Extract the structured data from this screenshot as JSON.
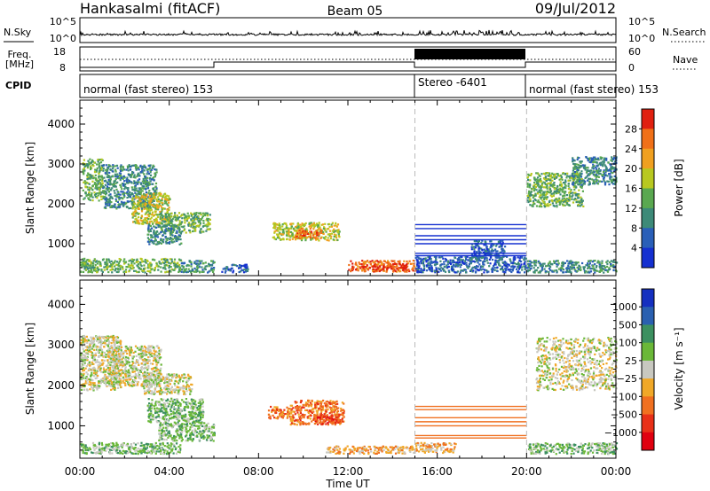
{
  "header": {
    "station": "Hankasalmi (fitACF)",
    "beam": "Beam 05",
    "date": "09/Jul/2012"
  },
  "strips": {
    "nsky": {
      "label": "N.Sky",
      "left_ticks": [
        "10^5",
        "10^0"
      ],
      "right_ticks": [
        "10^5",
        "10^0"
      ],
      "right_label": "N.Search"
    },
    "freq": {
      "label1": "Freq.",
      "label2": "[MHz]",
      "left_ticks": [
        "18",
        "8"
      ],
      "right_ticks": [
        "60",
        "0"
      ],
      "right_label": "Nave"
    },
    "cpid": {
      "label": "CPID",
      "segments": [
        {
          "text": "normal (fast stereo) 153",
          "start": 0,
          "end": 15
        },
        {
          "text": "Stereo -6401",
          "start": 15,
          "end": 20
        },
        {
          "text": "normal (fast stereo) 153",
          "start": 20,
          "end": 24
        }
      ]
    }
  },
  "chart_data": [
    {
      "type": "heatmap",
      "title": "",
      "xlabel": "Time UT",
      "ylabel": "Slant Range [km]",
      "x_ticks": [
        "00:00",
        "04:00",
        "08:00",
        "12:00",
        "16:00",
        "20:00",
        "00:00"
      ],
      "xlim": [
        0,
        24
      ],
      "ylim": [
        200,
        4600
      ],
      "y_ticks": [
        "1000",
        "2000",
        "3000",
        "4000"
      ],
      "mode_boundaries": [
        15,
        20
      ],
      "colorbar": {
        "label": "Power [dB]",
        "ticks": [
          "4",
          "8",
          "12",
          "16",
          "20",
          "24",
          "28"
        ],
        "range": [
          0,
          32
        ],
        "colors": [
          "#1530d0",
          "#2a5fb8",
          "#3d8a78",
          "#5aa850",
          "#b8c820",
          "#f0a020",
          "#f07018",
          "#e02010"
        ]
      },
      "blobs": [
        {
          "t0": 0.1,
          "t1": 1.0,
          "r0": 2100,
          "r1": 3150,
          "level": 3
        },
        {
          "t0": 1.0,
          "t1": 3.4,
          "r0": 1900,
          "r1": 3000,
          "level": 2
        },
        {
          "t0": 2.3,
          "t1": 4.0,
          "r0": 1500,
          "r1": 2300,
          "level": 4
        },
        {
          "t0": 3.5,
          "t1": 5.8,
          "r0": 1300,
          "r1": 1800,
          "level": 3
        },
        {
          "t0": 3.0,
          "t1": 4.5,
          "r0": 1000,
          "r1": 1500,
          "level": 2
        },
        {
          "t0": 0.0,
          "t1": 4.5,
          "r0": 300,
          "r1": 650,
          "level": 3
        },
        {
          "t0": 4.5,
          "t1": 6.0,
          "r0": 300,
          "r1": 600,
          "level": 2
        },
        {
          "t0": 6.3,
          "t1": 7.5,
          "r0": 300,
          "r1": 500,
          "level": 1
        },
        {
          "t0": 8.6,
          "t1": 11.6,
          "r0": 1100,
          "r1": 1550,
          "level": 4
        },
        {
          "t0": 9.6,
          "t1": 10.8,
          "r0": 1150,
          "r1": 1400,
          "level": 6
        },
        {
          "t0": 12.0,
          "t1": 15.0,
          "r0": 320,
          "r1": 600,
          "level": 6
        },
        {
          "t0": 13.0,
          "t1": 14.6,
          "r0": 360,
          "r1": 520,
          "level": 7
        },
        {
          "t0": 15.0,
          "t1": 20.0,
          "r0": 300,
          "r1": 700,
          "level": 1
        },
        {
          "t0": 17.5,
          "t1": 19.0,
          "r0": 650,
          "r1": 1100,
          "level": 1
        },
        {
          "t0": 20.0,
          "t1": 22.5,
          "r0": 1950,
          "r1": 2800,
          "level": 3
        },
        {
          "t0": 22.0,
          "t1": 24.0,
          "r0": 2500,
          "r1": 3200,
          "level": 2
        },
        {
          "t0": 20.0,
          "t1": 24.0,
          "r0": 300,
          "r1": 600,
          "level": 2
        }
      ],
      "range_lines": {
        "t0": 15.0,
        "t1": 20.0,
        "ranges": [
          1480,
          1380,
          1200,
          1100,
          1000,
          760,
          700
        ],
        "level": 0
      }
    },
    {
      "type": "heatmap",
      "title": "",
      "xlabel": "Time UT",
      "ylabel": "Slant Range [km]",
      "x_ticks": [
        "00:00",
        "04:00",
        "08:00",
        "12:00",
        "16:00",
        "20:00",
        "00:00"
      ],
      "xlim": [
        0,
        24
      ],
      "ylim": [
        200,
        4600
      ],
      "y_ticks": [
        "1000",
        "2000",
        "3000",
        "4000"
      ],
      "mode_boundaries": [
        15,
        20
      ],
      "colorbar": {
        "label": "Velocity [m s⁻¹]",
        "ticks": [
          "1000",
          "500",
          "100",
          "25",
          "−25",
          "−100",
          "−500",
          "−1000"
        ],
        "colors": [
          "#1530c0",
          "#2a60b0",
          "#3c9060",
          "#6ab838",
          "#c8c8c0",
          "#f0a828",
          "#f07020",
          "#e83018",
          "#e00010"
        ]
      },
      "blobs": [
        {
          "t0": 0.0,
          "t1": 1.8,
          "r0": 1900,
          "r1": 3250,
          "level": 4
        },
        {
          "t0": 1.2,
          "t1": 3.6,
          "r0": 2000,
          "r1": 3000,
          "level": 4
        },
        {
          "t0": 2.8,
          "t1": 5.0,
          "r0": 1800,
          "r1": 2300,
          "level": 4
        },
        {
          "t0": 3.0,
          "t1": 5.5,
          "r0": 1100,
          "r1": 1700,
          "level": 3
        },
        {
          "t0": 3.5,
          "t1": 6.0,
          "r0": 650,
          "r1": 1100,
          "level": 3
        },
        {
          "t0": 0.0,
          "t1": 4.5,
          "r0": 330,
          "r1": 600,
          "level": 3
        },
        {
          "t0": 8.4,
          "t1": 9.4,
          "r0": 1200,
          "r1": 1500,
          "level": 6
        },
        {
          "t0": 9.4,
          "t1": 11.8,
          "r0": 1050,
          "r1": 1650,
          "level": 6
        },
        {
          "t0": 10.5,
          "t1": 11.6,
          "r0": 1050,
          "r1": 1300,
          "level": 7
        },
        {
          "t0": 11.0,
          "t1": 15.0,
          "r0": 330,
          "r1": 520,
          "level": 5
        },
        {
          "t0": 15.0,
          "t1": 16.8,
          "r0": 350,
          "r1": 600,
          "level": 5
        },
        {
          "t0": 20.4,
          "t1": 24.0,
          "r0": 1900,
          "r1": 3200,
          "level": 4
        },
        {
          "t0": 20.0,
          "t1": 24.0,
          "r0": 330,
          "r1": 600,
          "level": 3
        }
      ],
      "range_lines": {
        "t0": 15.0,
        "t1": 20.0,
        "ranges": [
          1480,
          1400,
          1200,
          1100,
          1000,
          760,
          700
        ],
        "level": 6
      }
    }
  ]
}
